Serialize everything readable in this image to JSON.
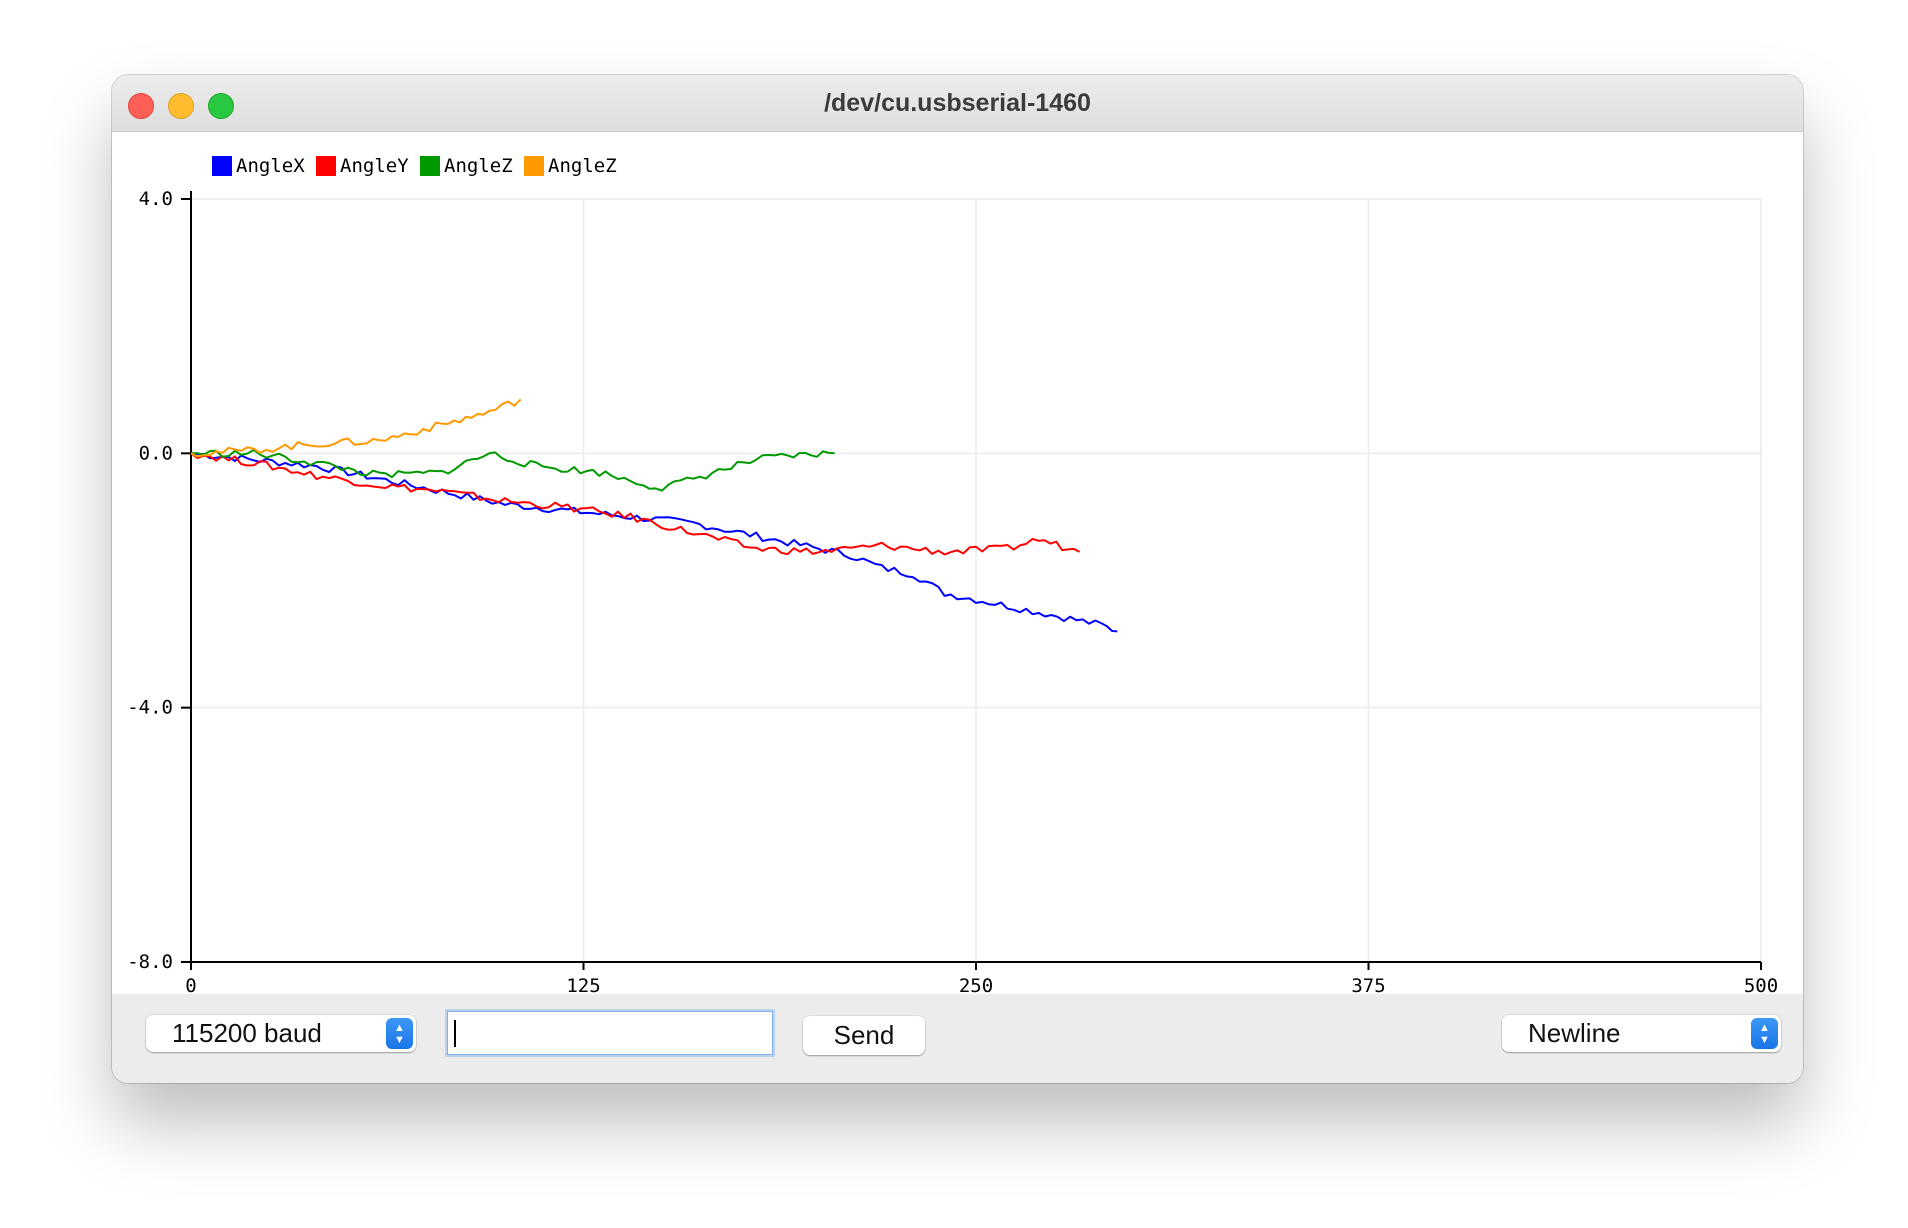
{
  "window": {
    "title": "/dev/cu.usbserial-1460"
  },
  "toolbar": {
    "baud_rate": "115200 baud",
    "message_input": {
      "value": ""
    },
    "send_label": "Send",
    "line_ending": "Newline",
    "popup_icon": "up-down-chevrons-icon"
  },
  "colors": {
    "AngleX": "#0000ff",
    "AngleY": "#ff0000",
    "AngleZ_1": "#009900",
    "AngleZ_2": "#ff9900"
  },
  "chart_data": {
    "type": "line",
    "legend": [
      "AngleX",
      "AngleY",
      "AngleZ",
      "AngleZ"
    ],
    "xlim": [
      0,
      500
    ],
    "ylim": [
      -8.0,
      4.0
    ],
    "x_ticks": [
      "0",
      "125",
      "250",
      "375",
      "500"
    ],
    "y_ticks": [
      "4.0",
      "0.0",
      "-4.0",
      "-8.0"
    ],
    "series": [
      {
        "name": "AngleX",
        "color": "#0000ff",
        "x": [
          0,
          20,
          40,
          60,
          80,
          100,
          120,
          140,
          160,
          180,
          200,
          210,
          220,
          230,
          240,
          250,
          260,
          270,
          280,
          290,
          295
        ],
        "y": [
          0.0,
          -0.1,
          -0.2,
          -0.4,
          -0.6,
          -0.8,
          -0.9,
          -1.0,
          -1.1,
          -1.3,
          -1.5,
          -1.6,
          -1.8,
          -1.9,
          -2.2,
          -2.3,
          -2.4,
          -2.5,
          -2.6,
          -2.7,
          -2.8
        ]
      },
      {
        "name": "AngleY",
        "color": "#ff0000",
        "x": [
          0,
          20,
          40,
          60,
          80,
          100,
          120,
          140,
          160,
          180,
          200,
          220,
          240,
          260,
          270,
          283
        ],
        "y": [
          0.0,
          -0.15,
          -0.35,
          -0.5,
          -0.6,
          -0.75,
          -0.85,
          -1.0,
          -1.25,
          -1.5,
          -1.55,
          -1.45,
          -1.55,
          -1.5,
          -1.35,
          -1.55
        ]
      },
      {
        "name": "AngleZ",
        "color": "#009900",
        "x": [
          0,
          20,
          40,
          60,
          80,
          95,
          110,
          130,
          150,
          160,
          170,
          180,
          190,
          205
        ],
        "y": [
          0.0,
          0.0,
          -0.15,
          -0.35,
          -0.3,
          0.0,
          -0.2,
          -0.3,
          -0.55,
          -0.4,
          -0.25,
          -0.1,
          -0.05,
          0.0
        ]
      },
      {
        "name": "AngleZ",
        "color": "#ff9900",
        "x": [
          0,
          20,
          40,
          60,
          80,
          95,
          105
        ],
        "y": [
          0.0,
          0.05,
          0.15,
          0.2,
          0.45,
          0.65,
          0.85
        ]
      }
    ]
  }
}
